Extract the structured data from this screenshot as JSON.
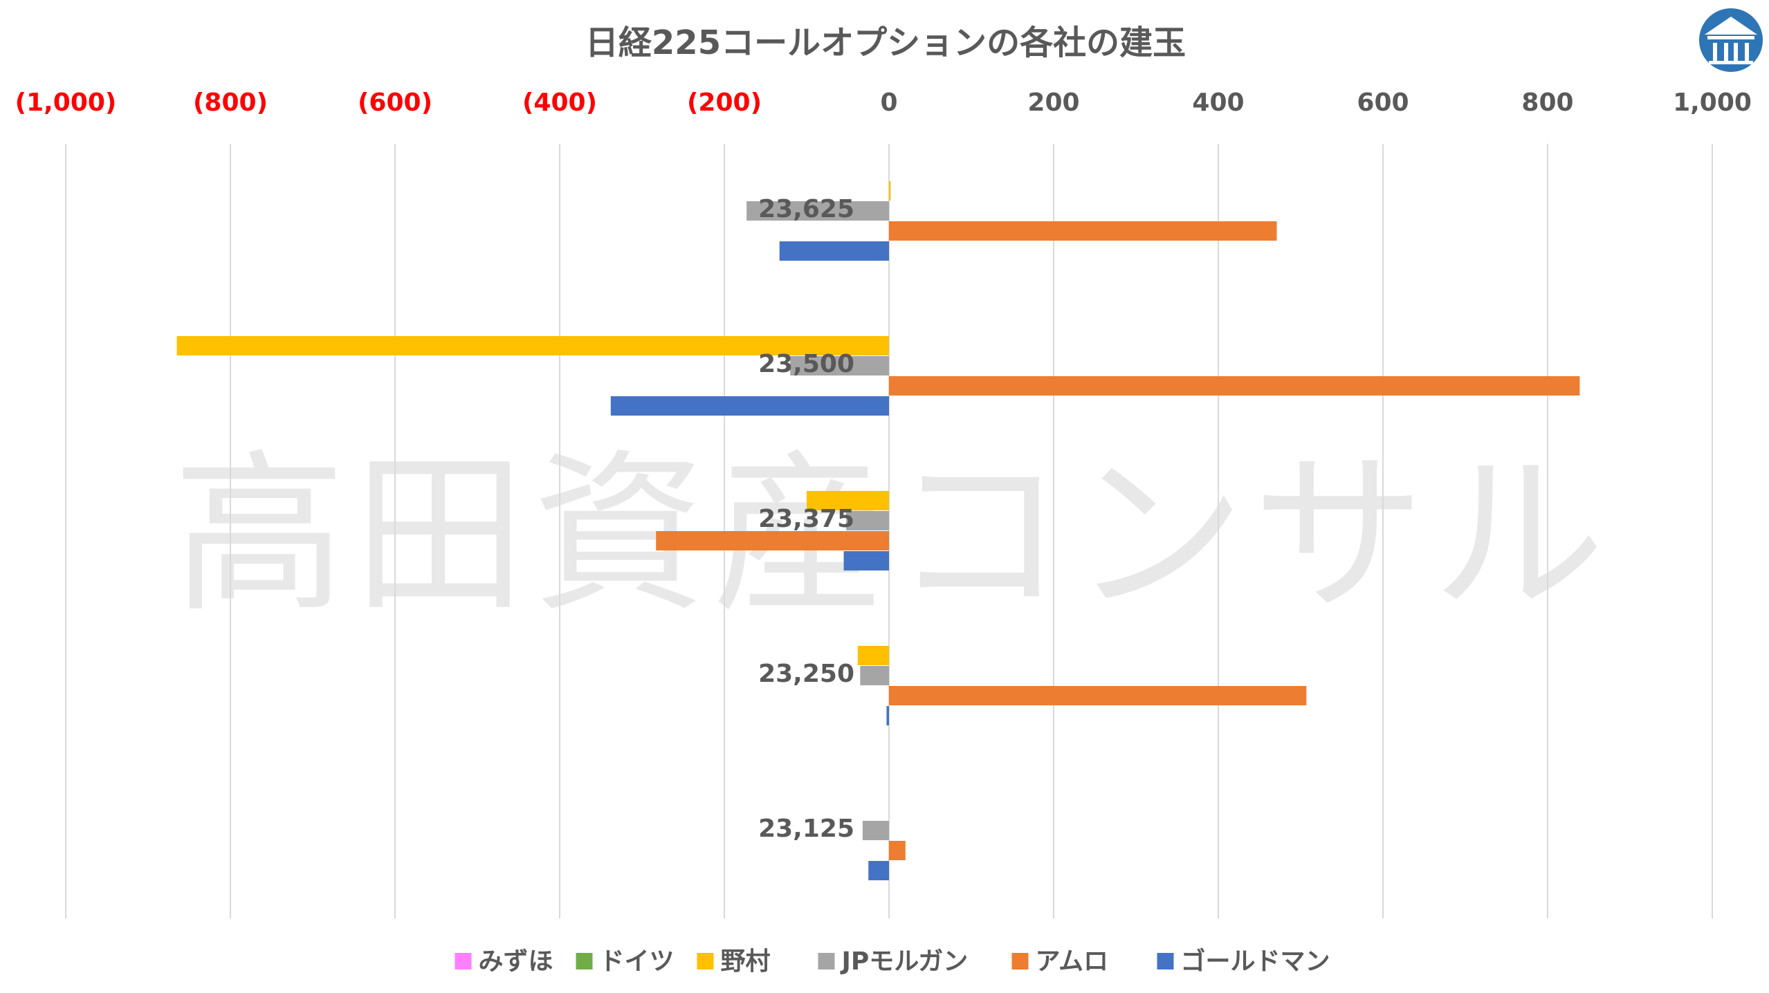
{
  "chart_data": {
    "type": "bar",
    "orientation": "horizontal",
    "title": "日経225コールオプションの各社の建玉",
    "watermark": "高田資産コンサル",
    "xlim": [
      -1000,
      1000
    ],
    "x_ticks": [
      {
        "value": -1000,
        "label": "(1,000)"
      },
      {
        "value": -800,
        "label": "(800)"
      },
      {
        "value": -600,
        "label": "(600)"
      },
      {
        "value": -400,
        "label": "(400)"
      },
      {
        "value": -200,
        "label": "(200)"
      },
      {
        "value": 0,
        "label": "0"
      },
      {
        "value": 200,
        "label": "200"
      },
      {
        "value": 400,
        "label": "400"
      },
      {
        "value": 600,
        "label": "600"
      },
      {
        "value": 800,
        "label": "800"
      },
      {
        "value": 1000,
        "label": "1,000"
      }
    ],
    "negative_tick_color": "#ff0000",
    "axis_position": "top",
    "grid": true,
    "legend_position": "bottom",
    "categories": [
      "23,625",
      "23,500",
      "23,375",
      "23,250",
      "23,125"
    ],
    "series": [
      {
        "name": "みずほ",
        "color": "#ff80ff",
        "values": [
          0,
          0,
          0,
          0,
          0
        ]
      },
      {
        "name": "ドイツ",
        "color": "#70ad47",
        "values": [
          0,
          0,
          0,
          0,
          0
        ]
      },
      {
        "name": "野村",
        "color": "#ffc000",
        "values": [
          2,
          -865,
          -100,
          -38,
          0
        ]
      },
      {
        "name": "JPモルガン",
        "color": "#a5a5a5",
        "values": [
          -173,
          -120,
          -52,
          -35,
          -32
        ]
      },
      {
        "name": "アムロ",
        "color": "#ed7d31",
        "values": [
          471,
          839,
          -283,
          507,
          20
        ]
      },
      {
        "name": "ゴールドマン",
        "color": "#4472c4",
        "values": [
          -133,
          -338,
          -55,
          -3,
          -25
        ]
      }
    ]
  },
  "logo": {
    "name": "logo-icon",
    "color": "#2e75b6"
  }
}
